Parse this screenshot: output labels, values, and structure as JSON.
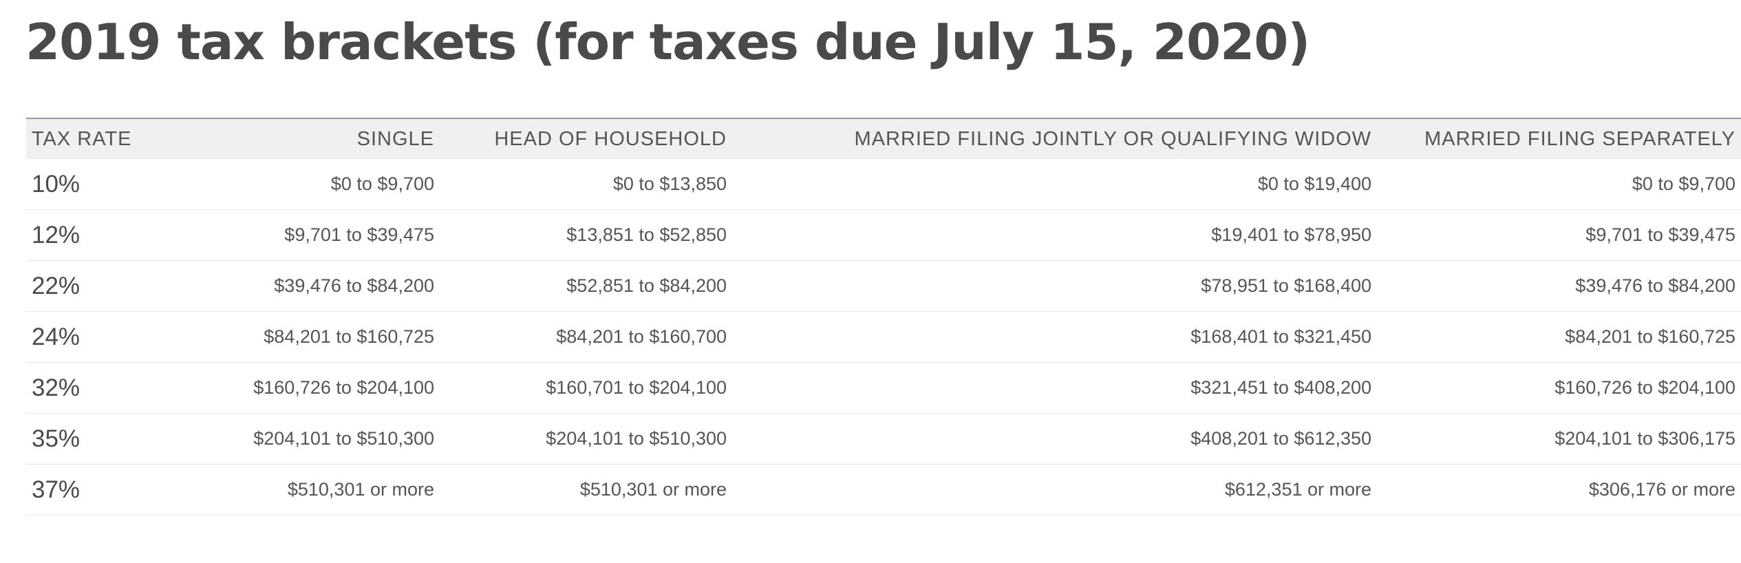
{
  "title": "2019 tax brackets (for taxes due July 15, 2020)",
  "table": {
    "headers": [
      "TAX RATE",
      "SINGLE",
      "HEAD OF HOUSEHOLD",
      "MARRIED FILING JOINTLY OR QUALIFYING WIDOW",
      "MARRIED FILING SEPARATELY"
    ],
    "rows": [
      [
        "10%",
        "$0 to $9,700",
        "$0 to $13,850",
        "$0 to $19,400",
        "$0 to $9,700"
      ],
      [
        "12%",
        "$9,701 to $39,475",
        "$13,851 to $52,850",
        "$19,401 to $78,950",
        "$9,701 to $39,475"
      ],
      [
        "22%",
        "$39,476 to $84,200",
        "$52,851 to $84,200",
        "$78,951 to $168,400",
        "$39,476 to $84,200"
      ],
      [
        "24%",
        "$84,201 to $160,725",
        "$84,201 to $160,700",
        "$168,401 to $321,450",
        "$84,201 to $160,725"
      ],
      [
        "32%",
        "$160,726 to $204,100",
        "$160,701 to $204,100",
        "$321,451 to $408,200",
        "$160,726 to $204,100"
      ],
      [
        "35%",
        "$204,101 to $510,300",
        "$204,101 to $510,300",
        "$408,201 to $612,350",
        "$204,101 to $306,175"
      ],
      [
        "37%",
        "$510,301 or more",
        "$510,301 or more",
        "$612,351 or more",
        "$306,176 or more"
      ]
    ]
  }
}
